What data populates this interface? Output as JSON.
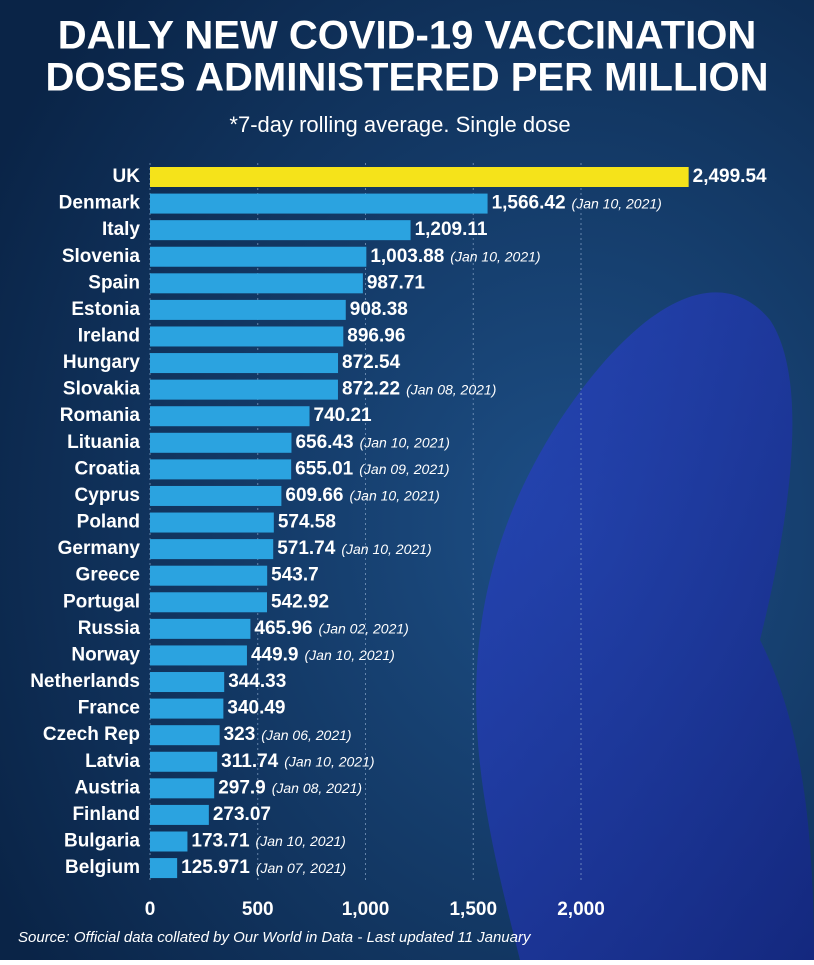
{
  "chart_data": {
    "type": "hbar",
    "title": [
      "DAILY NEW COVID-19 VACCINATION",
      "DOSES ADMINISTERED PER MILLION"
    ],
    "subtitle": "*7-day rolling average. Single dose",
    "source": "Source: Official data collated by Our World in Data - Last updated 11 January",
    "categories": [
      "UK",
      "Denmark",
      "Italy",
      "Slovenia",
      "Spain",
      "Estonia",
      "Ireland",
      "Hungary",
      "Slovakia",
      "Romania",
      "Lituania",
      "Croatia",
      "Cyprus",
      "Poland",
      "Germany",
      "Greece",
      "Portugal",
      "Russia",
      "Norway",
      "Netherlands",
      "France",
      "Czech Rep",
      "Latvia",
      "Austria",
      "Finland",
      "Bulgaria",
      "Belgium"
    ],
    "values": [
      2499.54,
      1566.42,
      1209.11,
      1003.88,
      987.71,
      908.38,
      896.96,
      872.54,
      872.22,
      740.21,
      656.43,
      655.01,
      609.66,
      574.58,
      571.74,
      543.7,
      542.92,
      465.96,
      449.9,
      344.33,
      340.49,
      323,
      311.74,
      297.9,
      273.07,
      173.71,
      125.971
    ],
    "value_labels": [
      "2,499.54",
      "1,566.42",
      "1,209.11",
      "1,003.88",
      "987.71",
      "908.38",
      "896.96",
      "872.54",
      "872.22",
      "740.21",
      "656.43",
      "655.01",
      "609.66",
      "574.58",
      "571.74",
      "543.7",
      "542.92",
      "465.96",
      "449.9",
      "344.33",
      "340.49",
      "323",
      "311.74",
      "297.9",
      "273.07",
      "173.71",
      "125.971"
    ],
    "notes": [
      null,
      "(Jan 10, 2021)",
      null,
      "(Jan 10, 2021)",
      null,
      null,
      null,
      null,
      "(Jan 08, 2021)",
      null,
      "(Jan 10, 2021)",
      "(Jan 09, 2021)",
      "(Jan 10, 2021)",
      null,
      "(Jan 10, 2021)",
      null,
      null,
      "(Jan 02, 2021)",
      "(Jan 10, 2021)",
      null,
      null,
      "(Jan 06, 2021)",
      "(Jan 10, 2021)",
      "(Jan 08, 2021)",
      null,
      "(Jan 10, 2021)",
      "(Jan 07, 2021)"
    ],
    "bar_colors": [
      "#f5e31a",
      "#2ba3e0",
      "#2ba3e0",
      "#2ba3e0",
      "#2ba3e0",
      "#2ba3e0",
      "#2ba3e0",
      "#2ba3e0",
      "#2ba3e0",
      "#2ba3e0",
      "#2ba3e0",
      "#2ba3e0",
      "#2ba3e0",
      "#2ba3e0",
      "#2ba3e0",
      "#2ba3e0",
      "#2ba3e0",
      "#2ba3e0",
      "#2ba3e0",
      "#2ba3e0",
      "#2ba3e0",
      "#2ba3e0",
      "#2ba3e0",
      "#2ba3e0",
      "#2ba3e0",
      "#2ba3e0",
      "#2ba3e0"
    ],
    "xlim": [
      0,
      3000
    ],
    "xticks": [
      0,
      500,
      {
        "value": 1000,
        "label": "1,000"
      },
      {
        "value": 1500,
        "label": "1,500"
      },
      {
        "value": 2000,
        "label": "2,000"
      }
    ],
    "grid": true
  }
}
